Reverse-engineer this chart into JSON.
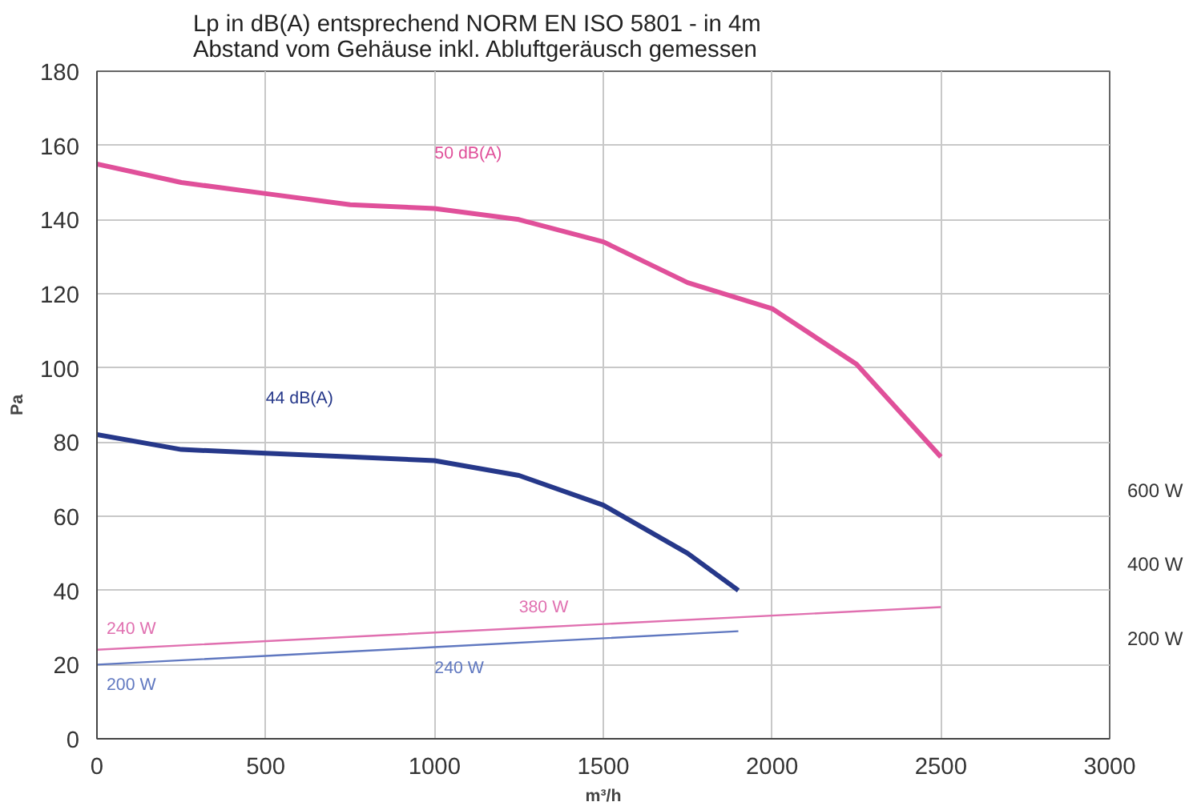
{
  "chart_data": {
    "type": "line",
    "title": "Lp in dB(A) entsprechend NORM EN ISO 5801 - in 4m\nAbstand vom Gehäuse inkl. Abluftgeräusch gemessen",
    "xlabel": "m³/h",
    "ylabel": "Pa",
    "xlim": [
      0,
      3000
    ],
    "xticks": [
      0,
      500,
      1000,
      1500,
      2000,
      2500,
      3000
    ],
    "ylim": [
      0,
      180
    ],
    "yticks": [
      0,
      20,
      40,
      60,
      80,
      100,
      120,
      140,
      160,
      180
    ],
    "y2lim": [
      -70,
      1730
    ],
    "y2ticks": [
      {
        "value": 200,
        "label": "200 W"
      },
      {
        "value": 400,
        "label": "400 W"
      },
      {
        "value": 600,
        "label": "600 W"
      }
    ],
    "grid": true,
    "marker": "none",
    "line_style": "solid",
    "series": [
      {
        "color": "#e0509a",
        "x": [
          0,
          250,
          500,
          750,
          1000,
          1250,
          1500,
          1750,
          2000,
          2250,
          2500
        ],
        "values": [
          155,
          150,
          147,
          144,
          143,
          140,
          134,
          123,
          116,
          101,
          76
        ]
      },
      {
        "color": "#26388a",
        "x": [
          0,
          250,
          500,
          750,
          1000,
          1250,
          1500,
          1750,
          1900
        ],
        "values": [
          82,
          78,
          77,
          76,
          75,
          71,
          63,
          50,
          40
        ]
      },
      {
        "color": "#e070b0",
        "x": [
          0,
          1250,
          2500
        ],
        "values": [
          24,
          29.8,
          35.5
        ]
      },
      {
        "color": "#6078c0",
        "x": [
          0,
          1000,
          1900
        ],
        "values": [
          20,
          24.7,
          29
        ]
      }
    ],
    "annotations": [
      {
        "text": "50 dB(A)",
        "x": 1000,
        "y": 143
      },
      {
        "text": "44 dB(A)",
        "x": 500,
        "y": 77
      },
      {
        "text": "240 W",
        "x": 0,
        "y": 24
      },
      {
        "text": "380 W",
        "x": 1250,
        "y": 29.8
      },
      {
        "text": "200 W",
        "x": 0,
        "y": 20
      },
      {
        "text": "240 W",
        "x": 1000,
        "y": 24.7
      }
    ]
  }
}
